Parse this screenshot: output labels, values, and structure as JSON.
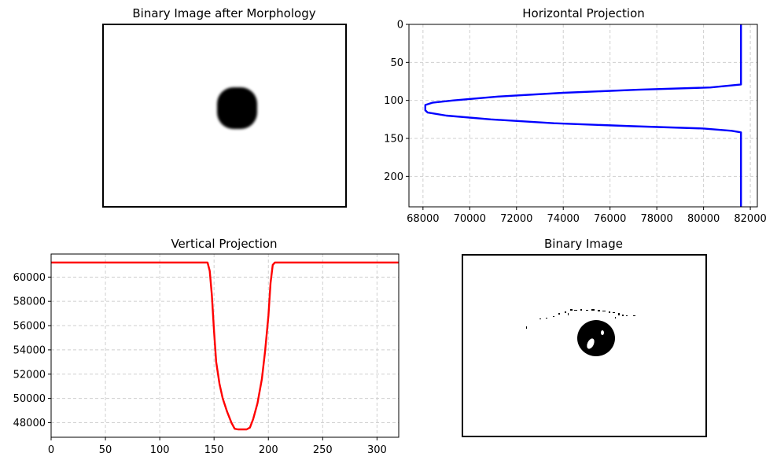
{
  "figure": {
    "panels": [
      {
        "id": "morph",
        "title": "Binary Image after Morphology",
        "kind": "image"
      },
      {
        "id": "hproj",
        "title": "Horizontal Projection",
        "kind": "chart"
      },
      {
        "id": "vproj",
        "title": "Vertical Projection",
        "kind": "chart"
      },
      {
        "id": "binary",
        "title": "Binary Image",
        "kind": "image"
      }
    ]
  },
  "chart_data": [
    {
      "type": "line",
      "title": "Horizontal Projection",
      "orientation": "horizontal",
      "color": "#0000ff",
      "grid": true,
      "xlim": [
        67400,
        82300
      ],
      "ylim": [
        240,
        0
      ],
      "x_ticks": [
        68000,
        70000,
        72000,
        74000,
        76000,
        78000,
        80000,
        82000
      ],
      "y_ticks": [
        0,
        50,
        100,
        150,
        200
      ],
      "series": [
        {
          "row": [
            0,
            79,
            83,
            86,
            90,
            95,
            100,
            103,
            106,
            108,
            110,
            113,
            116,
            120,
            125,
            130,
            134,
            137,
            140,
            142,
            240
          ],
          "sum": [
            81600,
            81600,
            80300,
            77200,
            74000,
            71200,
            69300,
            68400,
            68100,
            68100,
            68100,
            68100,
            68200,
            69000,
            70900,
            73600,
            77000,
            80000,
            81200,
            81600,
            81600
          ]
        }
      ]
    },
    {
      "type": "line",
      "title": "Vertical Projection",
      "orientation": "vertical",
      "color": "#ff0000",
      "grid": true,
      "xlim": [
        0,
        320
      ],
      "ylim": [
        46800,
        61900
      ],
      "x_ticks": [
        0,
        50,
        100,
        150,
        200,
        250,
        300
      ],
      "y_ticks": [
        48000,
        50000,
        52000,
        54000,
        56000,
        58000,
        60000
      ],
      "series": [
        {
          "column": [
            0,
            144,
            146,
            148,
            150,
            152,
            155,
            158,
            162,
            166,
            169,
            172,
            176,
            180,
            183,
            186,
            190,
            194,
            197,
            200,
            202,
            204,
            206,
            320
          ],
          "sum": [
            61200,
            61200,
            60500,
            58500,
            55500,
            53000,
            51200,
            50000,
            48900,
            48000,
            47500,
            47450,
            47450,
            47450,
            47600,
            48300,
            49600,
            51600,
            53900,
            56800,
            59500,
            61000,
            61200,
            61200
          ]
        }
      ]
    }
  ]
}
